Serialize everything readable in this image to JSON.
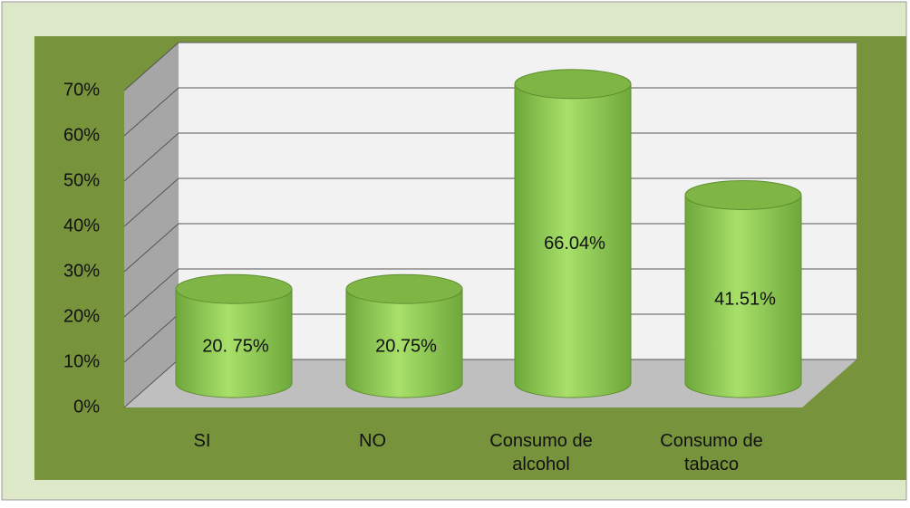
{
  "chart_data": {
    "type": "bar3d",
    "categories": [
      "SI",
      "NO",
      "Consumo de alcohol",
      "Consumo de tabaco"
    ],
    "values": [
      20.75,
      20.75,
      66.04,
      41.51
    ],
    "value_labels": [
      "20. 75%",
      "20.75%",
      "66.04%",
      "41.51%"
    ],
    "color": "#92d050",
    "ylim": [
      0,
      70
    ],
    "yticks": [
      {
        "value": 0,
        "label": "0%"
      },
      {
        "value": 10,
        "label": "10%"
      },
      {
        "value": 20,
        "label": "20%"
      },
      {
        "value": 30,
        "label": "30%"
      },
      {
        "value": 40,
        "label": "40%"
      },
      {
        "value": 50,
        "label": "50%"
      },
      {
        "value": 60,
        "label": "60%"
      },
      {
        "value": 70,
        "label": "70%"
      }
    ],
    "grid": true
  }
}
